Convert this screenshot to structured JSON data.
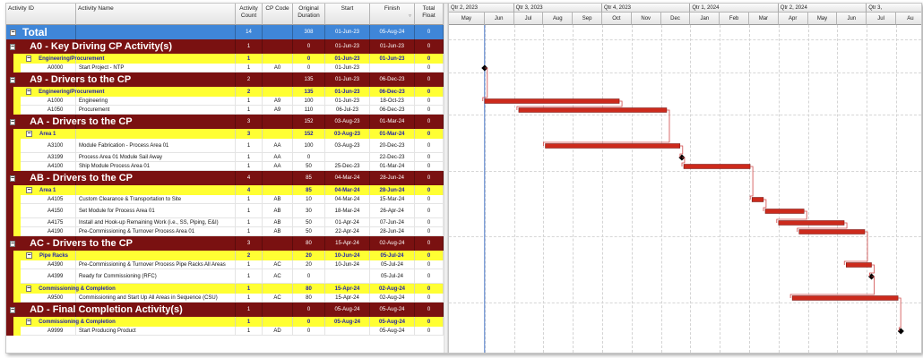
{
  "columns": {
    "activity_id": "Activity ID",
    "activity_name": "Activity Name",
    "activity_count": "Activity Count",
    "cp_code": "CP Code",
    "original_duration": "Original Duration",
    "start": "Start",
    "finish": "Finish",
    "total_float": "Total Float"
  },
  "rows": [
    {
      "level": "total",
      "name": "Total",
      "count": "14",
      "cp": "",
      "dur": "308",
      "start": "01-Jun-23",
      "finish": "05-Aug-24",
      "float": "0"
    },
    {
      "level": "l1",
      "name": "A0 - Key Driving CP Activity(s)",
      "count": "1",
      "cp": "",
      "dur": "0",
      "start": "01-Jun-23",
      "finish": "01-Jun-23",
      "float": "0"
    },
    {
      "level": "l2",
      "name": "Engineering/Procurement",
      "count": "1",
      "cp": "",
      "dur": "0",
      "start": "01-Jun-23",
      "finish": "01-Jun-23",
      "float": "0"
    },
    {
      "level": "act",
      "id": "A0000",
      "name": "Start Project - NTP",
      "count": "1",
      "cp": "A0",
      "dur": "0",
      "start": "01-Jun-23",
      "finish": "",
      "float": "0"
    },
    {
      "level": "l1",
      "name": "A9 - Drivers to the CP",
      "count": "2",
      "cp": "",
      "dur": "135",
      "start": "01-Jun-23",
      "finish": "06-Dec-23",
      "float": "0"
    },
    {
      "level": "l2",
      "name": "Engineering/Procurement",
      "count": "2",
      "cp": "",
      "dur": "135",
      "start": "01-Jun-23",
      "finish": "06-Dec-23",
      "float": "0"
    },
    {
      "level": "act",
      "id": "A1000",
      "name": "Engineering",
      "count": "1",
      "cp": "A9",
      "dur": "100",
      "start": "01-Jun-23",
      "finish": "18-Oct-23",
      "float": "0"
    },
    {
      "level": "act",
      "id": "A1050",
      "name": "Procurement",
      "count": "1",
      "cp": "A9",
      "dur": "110",
      "start": "06-Jul-23",
      "finish": "06-Dec-23",
      "float": "0"
    },
    {
      "level": "l1",
      "name": "AA - Drivers to the CP",
      "count": "3",
      "cp": "",
      "dur": "152",
      "start": "03-Aug-23",
      "finish": "01-Mar-24",
      "float": "0"
    },
    {
      "level": "l2",
      "name": "Area 1",
      "count": "3",
      "cp": "",
      "dur": "152",
      "start": "03-Aug-23",
      "finish": "01-Mar-24",
      "float": "0"
    },
    {
      "level": "act",
      "id": "A3100",
      "name": "Module Fabrication - Process Area 01",
      "count": "1",
      "cp": "AA",
      "dur": "100",
      "start": "03-Aug-23",
      "finish": "20-Dec-23",
      "float": "0",
      "tall": true
    },
    {
      "level": "act",
      "id": "A3199",
      "name": "Process Area 01 Module Sail Away",
      "count": "1",
      "cp": "AA",
      "dur": "0",
      "start": "",
      "finish": "22-Dec-23",
      "float": "0"
    },
    {
      "level": "act",
      "id": "A4100",
      "name": "Ship Module Process Area 01",
      "count": "1",
      "cp": "AA",
      "dur": "50",
      "start": "25-Dec-23",
      "finish": "01-Mar-24",
      "float": "0"
    },
    {
      "level": "l1",
      "name": "AB - Drivers to the CP",
      "count": "4",
      "cp": "",
      "dur": "85",
      "start": "04-Mar-24",
      "finish": "28-Jun-24",
      "float": "0"
    },
    {
      "level": "l2",
      "name": "Area 1",
      "count": "4",
      "cp": "",
      "dur": "85",
      "start": "04-Mar-24",
      "finish": "28-Jun-24",
      "float": "0"
    },
    {
      "level": "act",
      "id": "A4105",
      "name": "Custom Clearance & Transportation to Site",
      "count": "1",
      "cp": "AB",
      "dur": "10",
      "start": "04-Mar-24",
      "finish": "15-Mar-24",
      "float": "0"
    },
    {
      "level": "act",
      "id": "A4150",
      "name": "Set Module for Process Area 01",
      "count": "1",
      "cp": "AB",
      "dur": "30",
      "start": "18-Mar-24",
      "finish": "26-Apr-24",
      "float": "0",
      "tall": true
    },
    {
      "level": "act",
      "id": "A4175",
      "name": "Install and Hook-up Remaining Work (i.e., SS, Piping, E&I)",
      "count": "1",
      "cp": "AB",
      "dur": "50",
      "start": "01-Apr-24",
      "finish": "07-Jun-24",
      "float": "0"
    },
    {
      "level": "act",
      "id": "A4190",
      "name": "Pre-Commissioning & Turnover Process Area 01",
      "count": "1",
      "cp": "AB",
      "dur": "50",
      "start": "22-Apr-24",
      "finish": "28-Jun-24",
      "float": "0"
    },
    {
      "level": "l1",
      "name": "AC - Drivers to the CP",
      "count": "3",
      "cp": "",
      "dur": "80",
      "start": "15-Apr-24",
      "finish": "02-Aug-24",
      "float": "0"
    },
    {
      "level": "l2",
      "name": "Pipe Racks",
      "count": "2",
      "cp": "",
      "dur": "20",
      "start": "10-Jun-24",
      "finish": "05-Jul-24",
      "float": "0"
    },
    {
      "level": "act",
      "id": "A4390",
      "name": "Pre-Commissioning & Turnover Process Pipe Racks All Areas",
      "count": "1",
      "cp": "AC",
      "dur": "20",
      "start": "10-Jun-24",
      "finish": "05-Jul-24",
      "float": "0"
    },
    {
      "level": "act",
      "id": "A4399",
      "name": "Ready for Commissioning (RFC)",
      "count": "1",
      "cp": "AC",
      "dur": "0",
      "start": "",
      "finish": "05-Jul-24",
      "float": "0",
      "tall": true
    },
    {
      "level": "l2",
      "name": "Commissioning & Completion",
      "count": "1",
      "cp": "",
      "dur": "80",
      "start": "15-Apr-24",
      "finish": "02-Aug-24",
      "float": "0"
    },
    {
      "level": "act",
      "id": "A9500",
      "name": "Commissioning and Start Up All Areas in Sequence (CSU)",
      "count": "1",
      "cp": "AC",
      "dur": "80",
      "start": "15-Apr-24",
      "finish": "02-Aug-24",
      "float": "0"
    },
    {
      "level": "l1",
      "name": "AD - Final Completion Activity(s)",
      "count": "1",
      "cp": "",
      "dur": "0",
      "start": "05-Aug-24",
      "finish": "05-Aug-24",
      "float": "0"
    },
    {
      "level": "l2",
      "name": "Commissioning & Completion",
      "count": "1",
      "cp": "",
      "dur": "0",
      "start": "05-Aug-24",
      "finish": "05-Aug-24",
      "float": "0"
    },
    {
      "level": "act",
      "id": "A9999",
      "name": "Start Producing Product",
      "count": "1",
      "cp": "AD",
      "dur": "0",
      "start": "",
      "finish": "05-Aug-24",
      "float": "0"
    }
  ],
  "gantt": {
    "quarters": [
      "Qtr 2, 2023",
      "Qtr 3, 2023",
      "Qtr 4, 2023",
      "Qtr 1, 2024",
      "Qtr 2, 2024",
      "Qtr 3,"
    ],
    "months": [
      "May",
      "Jun",
      "Jul",
      "Aug",
      "Sep",
      "Oct",
      "Nov",
      "Dec",
      "Jan",
      "Feb",
      "Mar",
      "Apr",
      "May",
      "Jun",
      "Jul",
      "Au"
    ],
    "colors": {
      "bar": "#cc2a1c",
      "bar_border": "#6d0d0d",
      "link": "#d04848",
      "data_date": "#4a78c8",
      "milestone": "#000000"
    }
  }
}
